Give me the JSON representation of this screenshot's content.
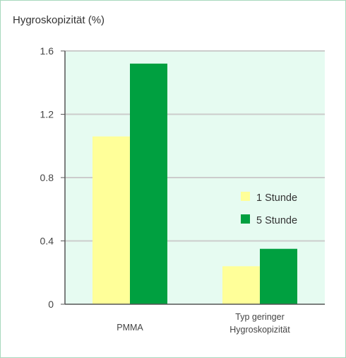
{
  "chart_data": {
    "type": "bar",
    "ylabel": "Hygroskopizität (%)",
    "ylim": [
      0,
      1.6
    ],
    "yticks": [
      {
        "value": 0,
        "label": "0"
      },
      {
        "value": 0.4,
        "label": "0.4"
      },
      {
        "value": 0.8,
        "label": "0.8"
      },
      {
        "value": 1.2,
        "label": "1.2"
      },
      {
        "value": 1.6,
        "label": "1.6"
      }
    ],
    "categories": [
      {
        "lines": [
          "PMMA"
        ]
      },
      {
        "lines": [
          "Typ geringer",
          "Hygroskopizität"
        ]
      }
    ],
    "series": [
      {
        "name": "1 Stunde",
        "color": "#ffff99",
        "values": [
          1.06,
          0.24
        ]
      },
      {
        "name": "5 Stunde",
        "color": "#00a040",
        "values": [
          1.52,
          0.35
        ]
      }
    ],
    "plot_background": "#e6fbf1",
    "grid": true,
    "legend_position": "right-center"
  }
}
